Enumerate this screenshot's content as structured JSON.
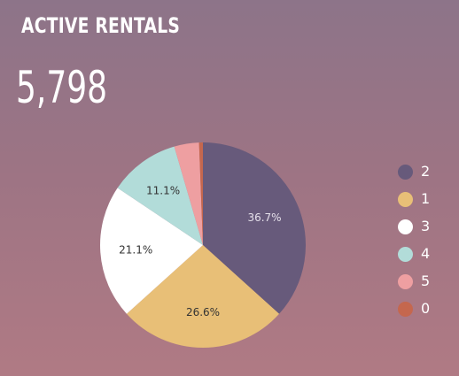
{
  "widget": {
    "title": "ACTIVE RENTALS",
    "value": "5,798"
  },
  "chart_data": {
    "type": "pie",
    "title": "ACTIVE RENTALS",
    "legend_position": "right",
    "slices": [
      {
        "label": "2",
        "percent": 36.7,
        "display": "36.7%",
        "color": "#675a7b",
        "text_color": "#e5e0ea"
      },
      {
        "label": "1",
        "percent": 26.6,
        "display": "26.6%",
        "color": "#e8bf77",
        "text_color": "#333333"
      },
      {
        "label": "3",
        "percent": 21.1,
        "display": "21.1%",
        "color": "#ffffff",
        "text_color": "#333333"
      },
      {
        "label": "4",
        "percent": 11.1,
        "display": "11.1%",
        "color": "#b2dcd9",
        "text_color": "#333333"
      },
      {
        "label": "5",
        "percent": 3.9,
        "display": "",
        "color": "#ee9fa1",
        "text_color": "#333333"
      },
      {
        "label": "0",
        "percent": 0.6,
        "display": "",
        "color": "#c5674e",
        "text_color": "#333333"
      }
    ]
  }
}
